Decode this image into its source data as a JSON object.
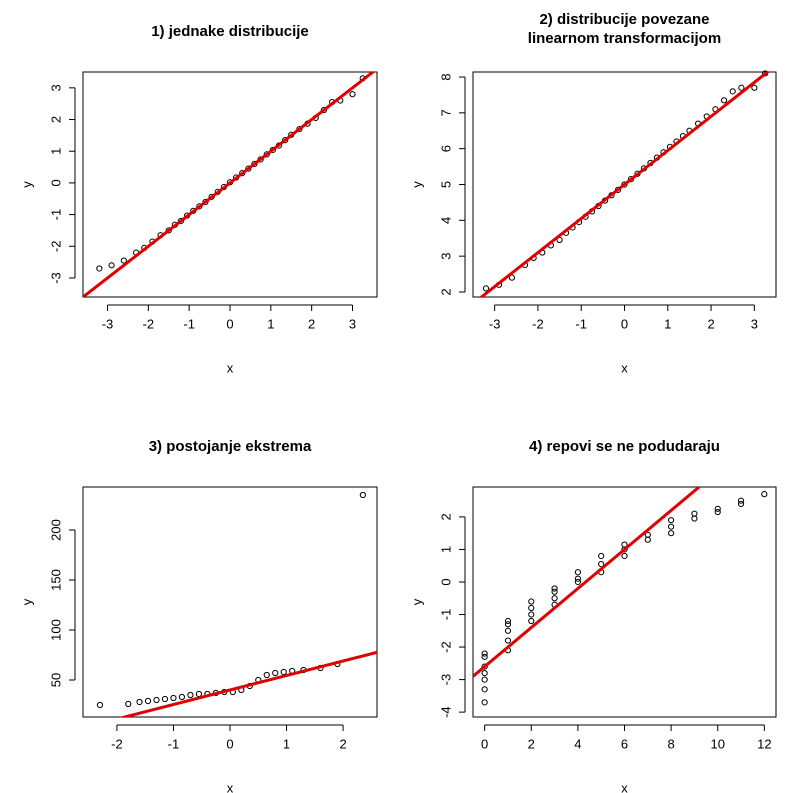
{
  "chart_data": [
    {
      "type": "scatter",
      "title": [
        "1) jednake distribucije"
      ],
      "xlabel": "x",
      "ylabel": "y",
      "xlim": [
        -3.6,
        3.6
      ],
      "ylim": [
        -3.6,
        3.5
      ],
      "xticks": [
        -3,
        -2,
        -1,
        0,
        1,
        2,
        3
      ],
      "yticks": [
        -3,
        -2,
        -1,
        0,
        1,
        2,
        3
      ],
      "point_color": "#000000",
      "x": [
        -3.2,
        -2.9,
        -2.6,
        -2.3,
        -2.1,
        -1.9,
        -1.7,
        -1.5,
        -1.35,
        -1.2,
        -1.05,
        -0.9,
        -0.75,
        -0.6,
        -0.45,
        -0.3,
        -0.15,
        0,
        0.15,
        0.3,
        0.45,
        0.6,
        0.75,
        0.9,
        1.05,
        1.2,
        1.35,
        1.5,
        1.7,
        1.9,
        2.1,
        2.3,
        2.5,
        2.7,
        3.0,
        3.25
      ],
      "values": [
        -2.7,
        -2.6,
        -2.45,
        -2.2,
        -2.05,
        -1.85,
        -1.65,
        -1.5,
        -1.32,
        -1.2,
        -1.03,
        -0.88,
        -0.74,
        -0.6,
        -0.44,
        -0.28,
        -0.13,
        0.02,
        0.17,
        0.31,
        0.45,
        0.6,
        0.74,
        0.9,
        1.04,
        1.18,
        1.35,
        1.52,
        1.7,
        1.87,
        2.05,
        2.3,
        2.55,
        2.6,
        2.8,
        3.3
      ],
      "line": {
        "intercept": 0,
        "slope": 1,
        "color": "#e00000"
      }
    },
    {
      "type": "scatter",
      "title": [
        "2) distribucije povezane",
        "linearnom transformacijom"
      ],
      "xlabel": "x",
      "ylabel": "y",
      "xlim": [
        -3.5,
        3.5
      ],
      "ylim": [
        1.86,
        8.14
      ],
      "xticks": [
        -3,
        -2,
        -1,
        0,
        1,
        2,
        3
      ],
      "yticks": [
        2,
        3,
        4,
        5,
        6,
        7,
        8
      ],
      "point_color": "#000000",
      "x": [
        -3.2,
        -2.9,
        -2.6,
        -2.3,
        -2.1,
        -1.9,
        -1.7,
        -1.5,
        -1.35,
        -1.2,
        -1.05,
        -0.9,
        -0.75,
        -0.6,
        -0.45,
        -0.3,
        -0.15,
        0,
        0.15,
        0.3,
        0.45,
        0.6,
        0.75,
        0.9,
        1.05,
        1.2,
        1.35,
        1.5,
        1.7,
        1.9,
        2.1,
        2.3,
        2.5,
        2.7,
        3.0,
        3.25
      ],
      "values": [
        2.1,
        2.2,
        2.4,
        2.75,
        2.95,
        3.1,
        3.3,
        3.45,
        3.65,
        3.8,
        3.95,
        4.1,
        4.25,
        4.4,
        4.55,
        4.7,
        4.85,
        5.0,
        5.15,
        5.3,
        5.45,
        5.6,
        5.75,
        5.9,
        6.05,
        6.2,
        6.35,
        6.5,
        6.7,
        6.9,
        7.1,
        7.35,
        7.6,
        7.7,
        7.7,
        8.1
      ],
      "line": {
        "intercept": 5.0,
        "slope": 0.95,
        "color": "#e00000"
      }
    },
    {
      "type": "scatter",
      "title": [
        "3) postojanje ekstrema"
      ],
      "xlabel": "x",
      "ylabel": "y",
      "xlim": [
        -2.6,
        2.6
      ],
      "ylim": [
        13,
        243
      ],
      "xticks": [
        -2,
        -1,
        0,
        1,
        2
      ],
      "yticks": [
        50,
        100,
        150,
        200
      ],
      "point_color": "#000000",
      "x": [
        -2.3,
        -1.8,
        -1.6,
        -1.45,
        -1.3,
        -1.15,
        -1.0,
        -0.85,
        -0.7,
        -0.55,
        -0.4,
        -0.25,
        -0.1,
        0.05,
        0.2,
        0.35,
        0.5,
        0.65,
        0.8,
        0.95,
        1.1,
        1.3,
        1.6,
        1.9,
        2.35
      ],
      "values": [
        25,
        26,
        28,
        29,
        30,
        31,
        32,
        33,
        35,
        36,
        36,
        37,
        38,
        38,
        40,
        44,
        50,
        55,
        57,
        58,
        59,
        60,
        62,
        66,
        235
      ],
      "line": {
        "intercept": 40,
        "slope": 14.5,
        "color": "#e00000"
      }
    },
    {
      "type": "scatter",
      "title": [
        "4) repovi se ne podudaraju"
      ],
      "xlabel": "x",
      "ylabel": "y",
      "xlim": [
        -0.5,
        12.5
      ],
      "ylim": [
        -4.15,
        2.92
      ],
      "xticks": [
        0,
        2,
        4,
        6,
        8,
        10,
        12
      ],
      "yticks": [
        -4,
        -3,
        -2,
        -1,
        0,
        1,
        2
      ],
      "point_color": "#000000",
      "x": [
        0,
        0,
        0,
        0,
        0,
        0,
        0,
        1,
        1,
        1,
        1,
        1,
        2,
        2,
        2,
        2,
        3,
        3,
        3,
        3,
        4,
        4,
        4,
        5,
        5,
        5,
        6,
        6,
        6,
        7,
        7,
        8,
        8,
        8,
        9,
        9,
        10,
        10,
        11,
        11,
        12
      ],
      "values": [
        -3.7,
        -3.3,
        -3.0,
        -2.8,
        -2.6,
        -2.3,
        -2.2,
        -2.1,
        -1.8,
        -1.5,
        -1.3,
        -1.2,
        -1.2,
        -1.0,
        -0.8,
        -0.6,
        -0.7,
        -0.5,
        -0.3,
        -0.2,
        0,
        0.1,
        0.3,
        0.3,
        0.55,
        0.8,
        0.8,
        1.0,
        1.15,
        1.3,
        1.45,
        1.5,
        1.7,
        1.9,
        1.95,
        2.1,
        2.15,
        2.25,
        2.4,
        2.5,
        2.7
      ],
      "line": {
        "intercept": -2.6,
        "slope": 0.6,
        "color": "#e00000"
      }
    }
  ]
}
